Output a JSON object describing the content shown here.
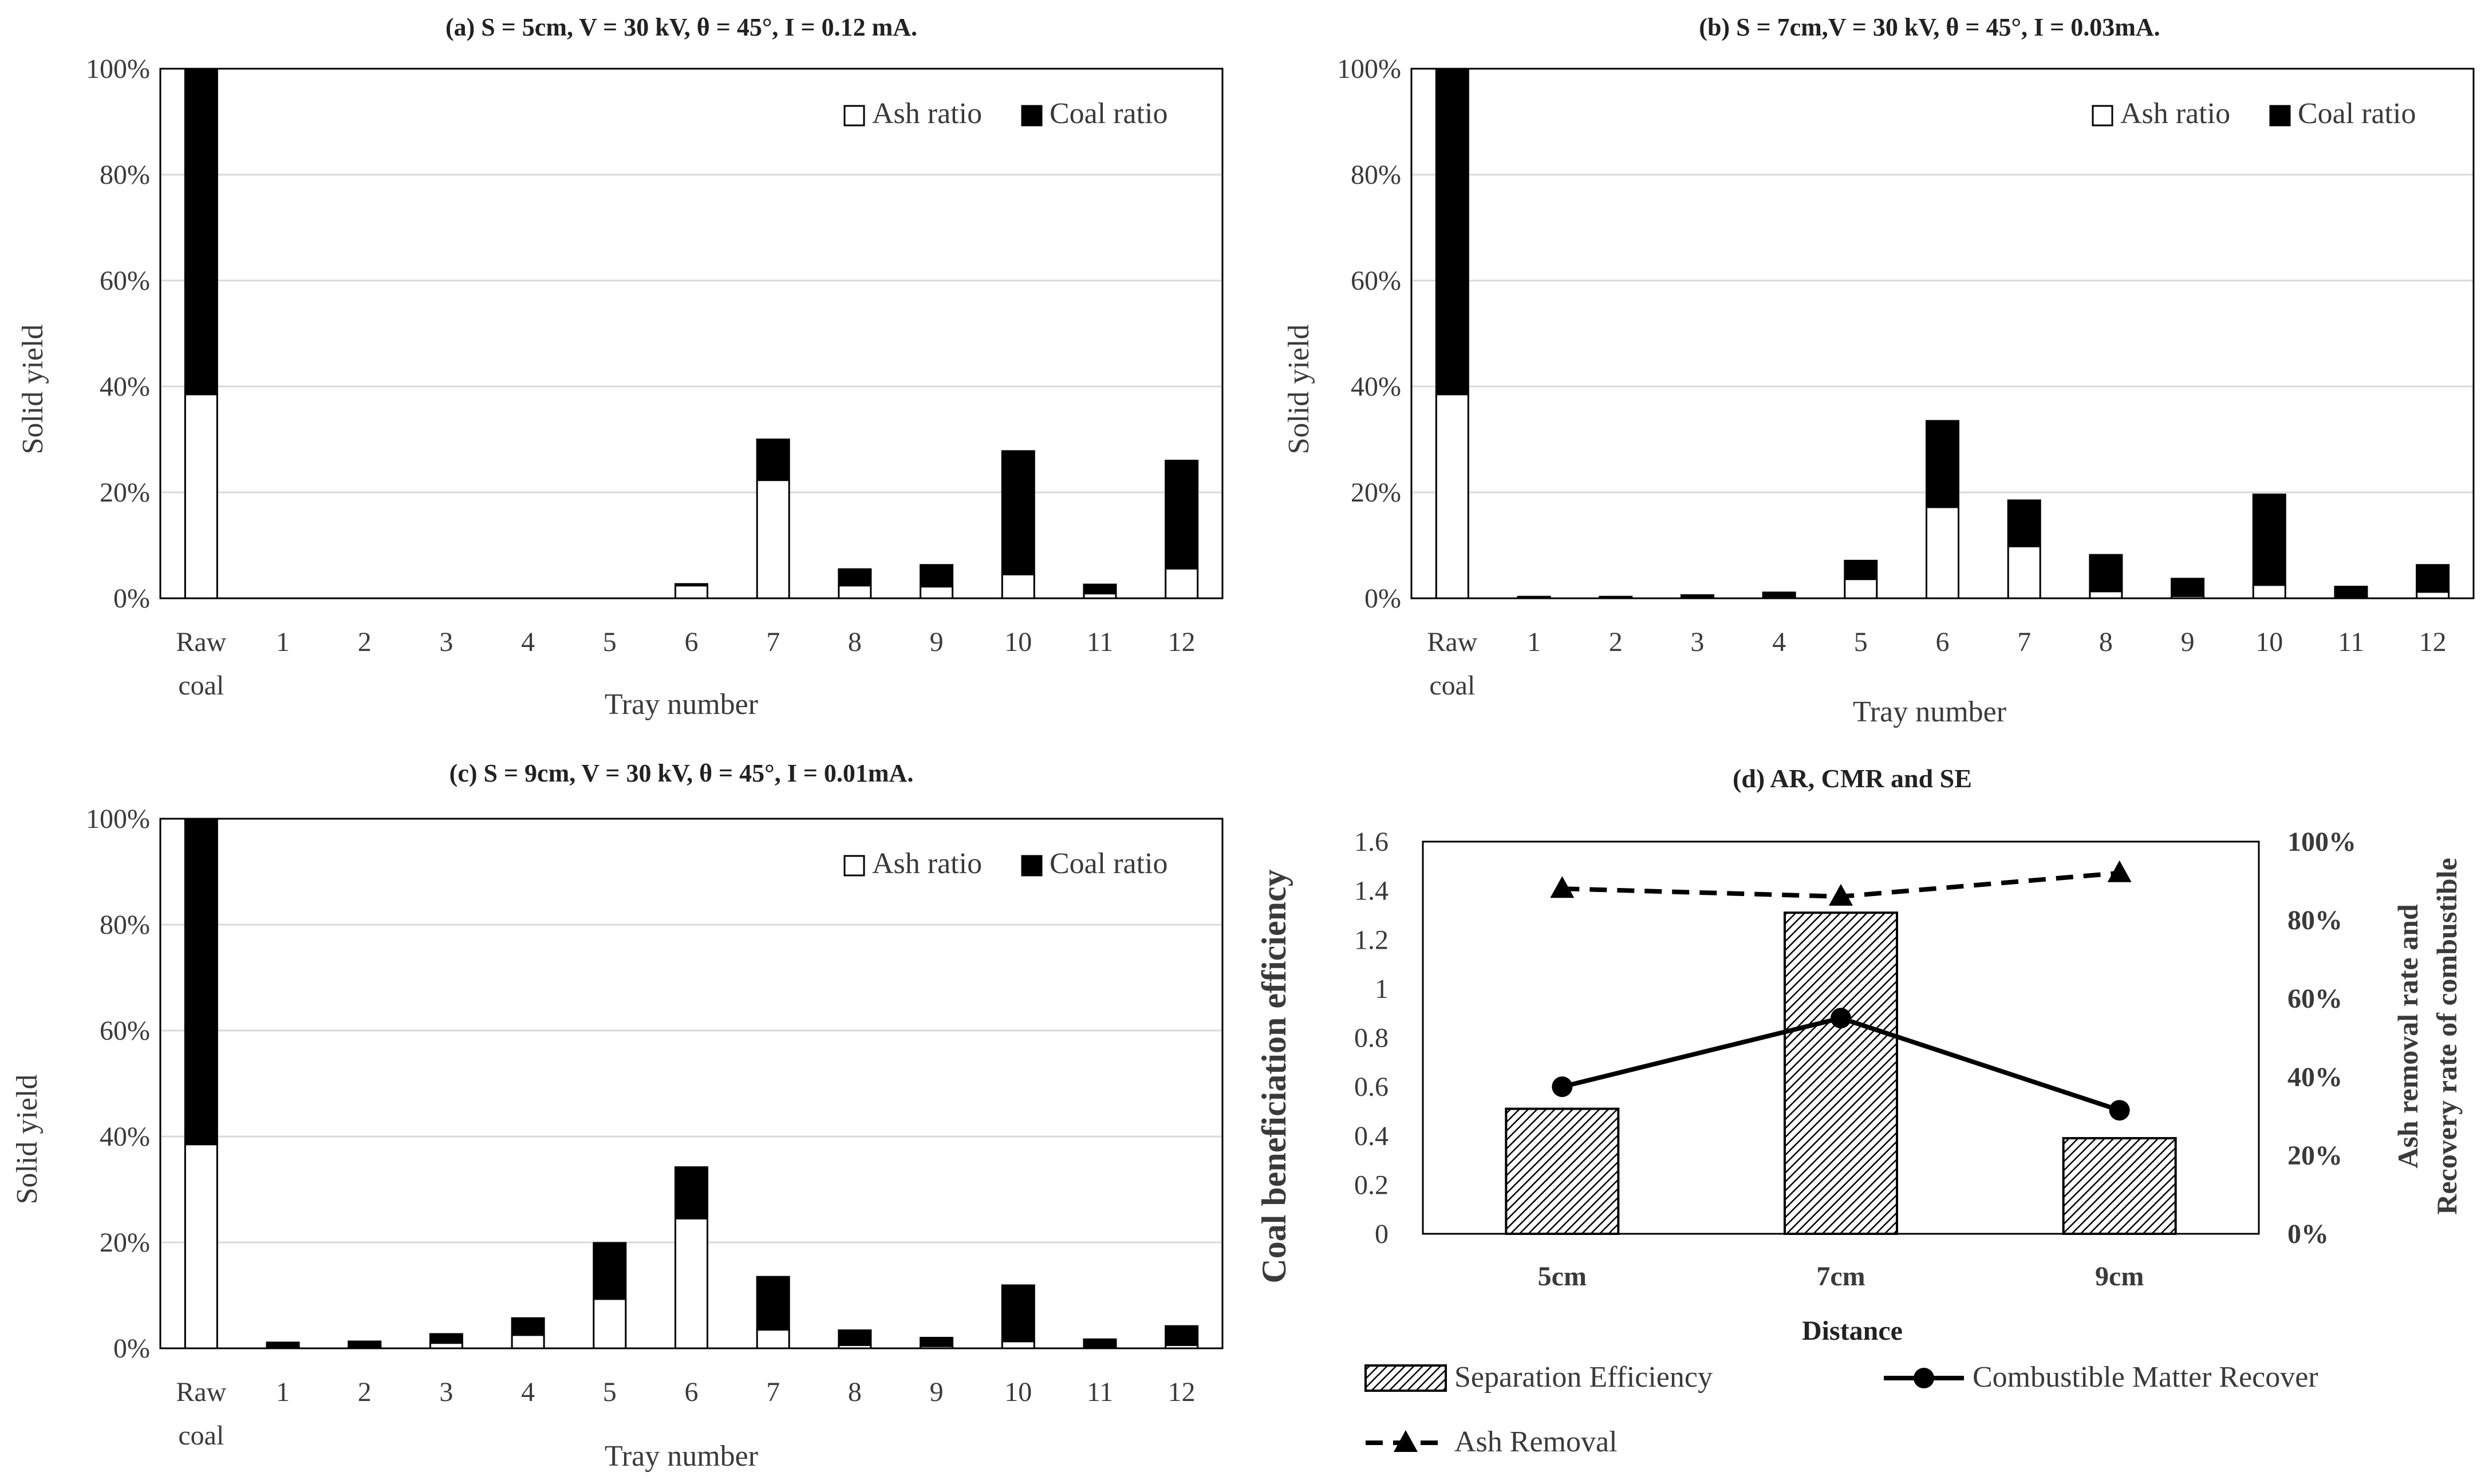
{
  "colors": {
    "ash": "#ffffff",
    "coal": "#000000",
    "axis": "#000000",
    "grid": "#d9d9d9",
    "text": "#3a3a3a"
  },
  "chart_data": [
    {
      "id": "a",
      "type": "bar",
      "stacked": true,
      "title": "(a)  S = 5cm, V = 30 kV, θ = 45°, I = 0.12 mA.",
      "xlabel": "Tray number",
      "ylabel": "Solid yield",
      "ylim": [
        0,
        100
      ],
      "yticks": [
        "0%",
        "20%",
        "40%",
        "60%",
        "80%",
        "100%"
      ],
      "categories": [
        "Raw\ncoal",
        "1",
        "2",
        "3",
        "4",
        "5",
        "6",
        "7",
        "8",
        "9",
        "10",
        "11",
        "12"
      ],
      "legend_position": "top-right",
      "series": [
        {
          "name": "Ash ratio",
          "values": [
            38.5,
            0,
            0,
            0,
            0,
            0,
            2.4,
            22.3,
            2.4,
            2.2,
            4.5,
            0.9,
            5.6
          ]
        },
        {
          "name": "Coal ratio",
          "values": [
            61.5,
            0,
            0,
            0,
            0,
            0,
            0.3,
            7.7,
            3.1,
            4.1,
            23.3,
            1.7,
            20.4
          ]
        }
      ]
    },
    {
      "id": "b",
      "type": "bar",
      "stacked": true,
      "title": "(b) S = 7cm,V = 30 kV,  θ = 45°, I = 0.03mA.",
      "xlabel": "Tray number",
      "ylabel": "Solid yield",
      "ylim": [
        0,
        100
      ],
      "yticks": [
        "0%",
        "20%",
        "40%",
        "60%",
        "80%",
        "100%"
      ],
      "categories": [
        "Raw\ncoal",
        "1",
        "2",
        "3",
        "4",
        "5",
        "6",
        "7",
        "8",
        "9",
        "10",
        "11",
        "12"
      ],
      "legend_position": "top-right",
      "series": [
        {
          "name": "Ash ratio",
          "values": [
            38.5,
            0.1,
            0.1,
            0.2,
            0.3,
            3.6,
            17.2,
            9.8,
            1.3,
            0.4,
            2.5,
            0.3,
            1.2
          ]
        },
        {
          "name": "Coal ratio",
          "values": [
            61.5,
            0.2,
            0.2,
            0.4,
            0.8,
            3.5,
            16.3,
            8.7,
            6.9,
            3.3,
            17.1,
            1.9,
            5.1
          ]
        }
      ]
    },
    {
      "id": "c",
      "type": "bar",
      "stacked": true,
      "title": "(c) S = 9cm, V = 30 kV, θ = 45°, I = 0.01mA.",
      "xlabel": "Tray number",
      "ylabel": "Solid yield",
      "ylim": [
        0,
        100
      ],
      "yticks": [
        "0%",
        "20%",
        "40%",
        "60%",
        "80%",
        "100%"
      ],
      "categories": [
        "Raw\ncoal",
        "1",
        "2",
        "3",
        "4",
        "5",
        "6",
        "7",
        "8",
        "9",
        "10",
        "11",
        "12"
      ],
      "legend_position": "top-right",
      "series": [
        {
          "name": "Ash ratio",
          "values": [
            38.5,
            0.3,
            0.3,
            1.0,
            2.5,
            9.3,
            24.5,
            3.5,
            0.6,
            0.4,
            1.3,
            0.3,
            0.6
          ]
        },
        {
          "name": "Coal ratio",
          "values": [
            61.5,
            0.8,
            1.0,
            1.7,
            3.2,
            10.6,
            9.7,
            10.0,
            2.8,
            1.6,
            10.6,
            1.4,
            3.6
          ]
        }
      ]
    },
    {
      "id": "d",
      "type": "bar",
      "title": "(d) AR, CMR and SE",
      "xlabel": "Distance",
      "ylabel": "Coal beneficiation efficiency",
      "y2label": "Ash removal rate and Recovery rate of combustible",
      "categories": [
        "5cm",
        "7cm",
        "9cm"
      ],
      "ylim": [
        0,
        1.6
      ],
      "y2lim": [
        0,
        100
      ],
      "yticks": [
        "0",
        "0.2",
        "0.4",
        "0.6",
        "0.8",
        "1",
        "1.2",
        "1.4",
        "1.6"
      ],
      "y2ticks": [
        "0%",
        "20%",
        "40%",
        "60%",
        "80%",
        "100%"
      ],
      "legend_position": "bottom",
      "series": [
        {
          "name": "Separation Efficiency",
          "type": "bar",
          "axis": "left",
          "values": [
            0.51,
            1.31,
            0.39
          ]
        },
        {
          "name": "Combustible Matter Recover",
          "type": "line",
          "axis": "right",
          "values": [
            37.5,
            55.0,
            31.5
          ]
        },
        {
          "name": "Ash Removal",
          "type": "line-dashed",
          "axis": "right",
          "values": [
            88.0,
            86.0,
            92.0
          ]
        }
      ]
    }
  ]
}
